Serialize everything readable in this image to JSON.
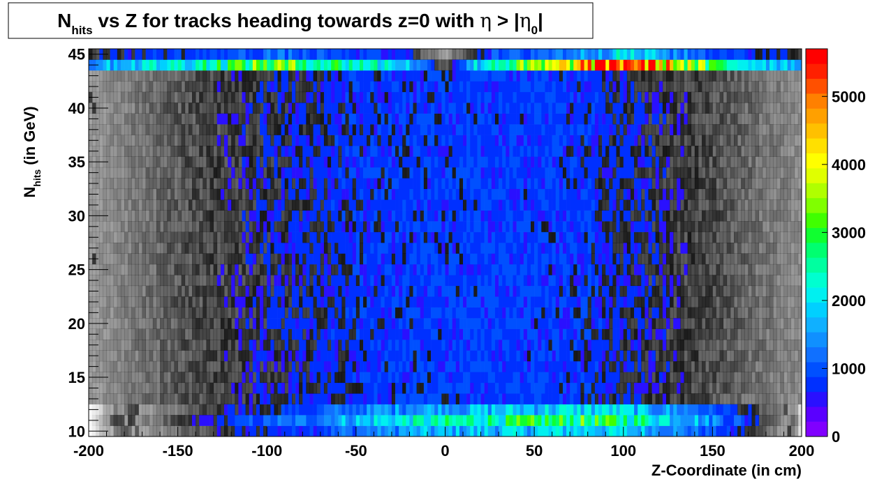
{
  "chart_data": {
    "type": "heatmap",
    "title": {
      "parts": [
        {
          "text": "N",
          "style": "normal"
        },
        {
          "text": "hits",
          "style": "sub"
        },
        {
          "text": " vs Z for tracks heading towards z=0 with ",
          "style": "normal"
        },
        {
          "text": "η",
          "style": "greek"
        },
        {
          "text": " > |",
          "style": "normal"
        },
        {
          "text": "η",
          "style": "greek"
        },
        {
          "text": "0",
          "style": "sub"
        },
        {
          "text": "|",
          "style": "normal"
        }
      ]
    },
    "xlabel": "Z-Coordinate (in cm)",
    "ylabel": {
      "parts": [
        {
          "text": "N",
          "style": "normal"
        },
        {
          "text": "hits",
          "style": "sub"
        },
        {
          "text": " (in GeV)",
          "style": "normal"
        }
      ]
    },
    "xlim": [
      -200,
      200
    ],
    "ylim": [
      9.5,
      45.5
    ],
    "x_ticks": [
      -200,
      -150,
      -100,
      -50,
      0,
      50,
      100,
      150,
      200
    ],
    "y_ticks": [
      10,
      15,
      20,
      25,
      30,
      35,
      40,
      45
    ],
    "colorbar": {
      "min": 0,
      "max": 5700,
      "ticks": [
        0,
        1000,
        2000,
        3000,
        4000,
        5000
      ],
      "colors": [
        "#8000ff",
        "#5a00ff",
        "#2a10ff",
        "#0030ff",
        "#0050ff",
        "#1070ff",
        "#1090ff",
        "#10b0ff",
        "#00d0ff",
        "#00f0f0",
        "#00ffd0",
        "#00ffa0",
        "#00ff70",
        "#10ff30",
        "#40ff00",
        "#80ff00",
        "#b0ff00",
        "#e0ff00",
        "#ffff00",
        "#ffe000",
        "#ffc000",
        "#ffa000",
        "#ff8000",
        "#ff5000",
        "#ff2000",
        "#ff0000"
      ]
    },
    "density_profile": {
      "description": "counts per (z, N_hits) bin",
      "x_samples": [
        -200,
        -175,
        -150,
        -125,
        -100,
        -75,
        -50,
        -25,
        0,
        25,
        50,
        75,
        100,
        125,
        150,
        175,
        200
      ],
      "top_band_N45_counts": [
        1500,
        1900,
        2200,
        2600,
        3200,
        2800,
        2400,
        2000,
        300,
        2500,
        3100,
        4200,
        5600,
        4300,
        2700,
        2100,
        1700
      ],
      "bottom_band_N11_counts": [
        0,
        150,
        400,
        700,
        1000,
        1300,
        1700,
        2100,
        2300,
        2500,
        2600,
        2800,
        2600,
        2100,
        1400,
        600,
        0
      ],
      "interior_mean_counts": [
        150,
        260,
        380,
        480,
        560,
        640,
        740,
        800,
        800,
        840,
        840,
        760,
        640,
        520,
        420,
        300,
        200
      ]
    },
    "grid": false,
    "legend": "none"
  }
}
